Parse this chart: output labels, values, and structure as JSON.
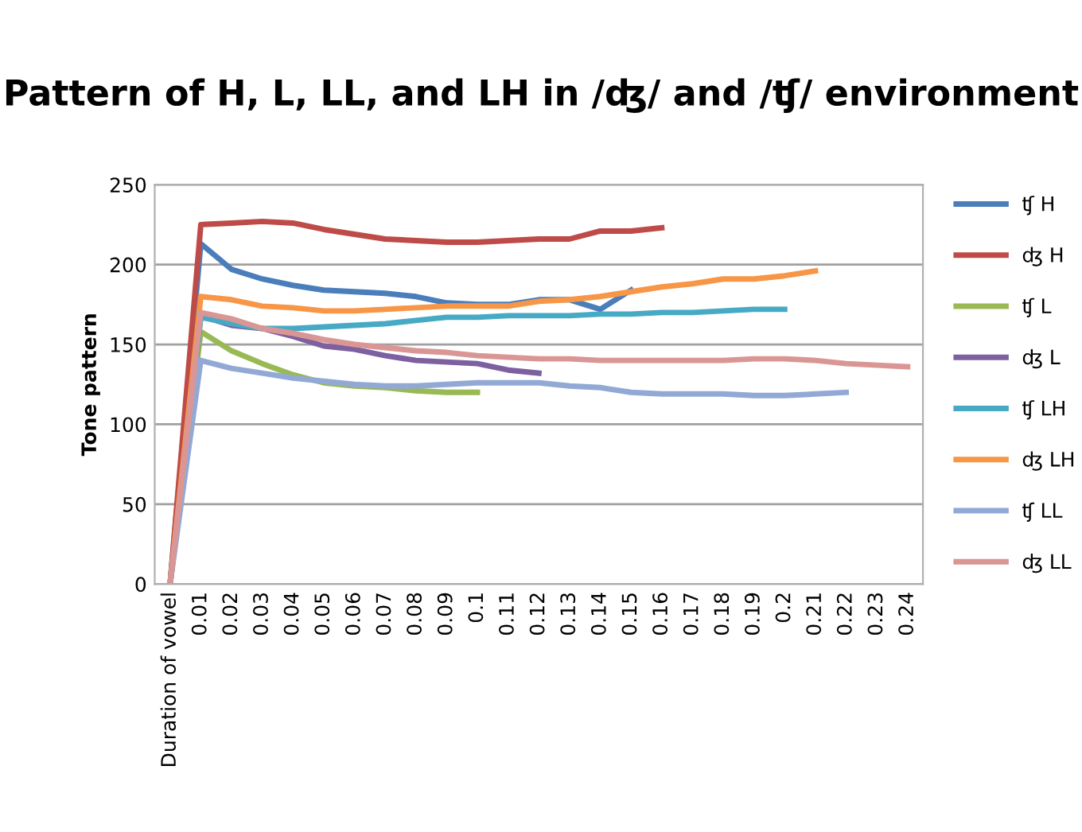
{
  "chart_data": {
    "type": "line",
    "title": "Pattern of H, L, LL, and LH in /ʤ/ and /ʧ/ environment",
    "ylabel": "Tone pattern",
    "categories": [
      "Duration of vowel",
      "0.01",
      "0.02",
      "0.03",
      "0.04",
      "0.05",
      "0.06",
      "0.07",
      "0.08",
      "0.09",
      "0.1",
      "0.11",
      "0.12",
      "0.13",
      "0.14",
      "0.15",
      "0.16",
      "0.17",
      "0.18",
      "0.19",
      "0.2",
      "0.21",
      "0.22",
      "0.23",
      "0.24"
    ],
    "ylim": [
      0,
      250
    ],
    "yticks": [
      0,
      50,
      100,
      150,
      200,
      250
    ],
    "grid": "y",
    "legend": "right",
    "marker": "none",
    "line_style": "solid",
    "series": [
      {
        "name": "ʧ H",
        "color": "#4a7ebb",
        "values": [
          0,
          213,
          197,
          191,
          187,
          184,
          183,
          182,
          180,
          176,
          175,
          175,
          178,
          178,
          172,
          184,
          null,
          null,
          null,
          null,
          null,
          null,
          null,
          null,
          null
        ]
      },
      {
        "name": "ʤ H",
        "color": "#be4b48",
        "values": [
          0,
          225,
          226,
          227,
          226,
          222,
          219,
          216,
          215,
          214,
          214,
          215,
          216,
          216,
          221,
          221,
          223,
          null,
          null,
          null,
          null,
          null,
          null,
          null,
          null
        ]
      },
      {
        "name": "ʧ L",
        "color": "#98b954",
        "values": [
          0,
          158,
          146,
          138,
          131,
          126,
          124,
          123,
          121,
          120,
          120,
          null,
          null,
          null,
          null,
          null,
          null,
          null,
          null,
          null,
          null,
          null,
          null,
          null,
          null
        ]
      },
      {
        "name": "ʤ L",
        "color": "#7d60a0",
        "values": [
          0,
          168,
          162,
          160,
          155,
          149,
          147,
          143,
          140,
          139,
          138,
          134,
          132,
          null,
          null,
          null,
          null,
          null,
          null,
          null,
          null,
          null,
          null,
          null,
          null
        ]
      },
      {
        "name": "ʧ LH",
        "color": "#46aac5",
        "values": [
          0,
          167,
          163,
          160,
          160,
          161,
          162,
          163,
          165,
          167,
          167,
          168,
          168,
          168,
          169,
          169,
          170,
          170,
          171,
          172,
          172,
          null,
          null,
          null,
          null
        ]
      },
      {
        "name": "ʤ LH",
        "color": "#f79646",
        "values": [
          0,
          180,
          178,
          174,
          173,
          171,
          171,
          172,
          173,
          174,
          174,
          174,
          177,
          178,
          180,
          183,
          186,
          188,
          191,
          191,
          193,
          196,
          null,
          null,
          null
        ]
      },
      {
        "name": "ʧ LL",
        "color": "#92a9d6",
        "values": [
          0,
          140,
          135,
          132,
          129,
          127,
          125,
          124,
          124,
          125,
          126,
          126,
          126,
          124,
          123,
          120,
          119,
          119,
          119,
          118,
          118,
          119,
          120,
          null,
          null
        ]
      },
      {
        "name": "ʤ LL",
        "color": "#d99694",
        "values": [
          0,
          170,
          166,
          160,
          157,
          153,
          150,
          148,
          146,
          145,
          143,
          142,
          141,
          141,
          140,
          140,
          140,
          140,
          140,
          141,
          141,
          140,
          138,
          137,
          136
        ]
      }
    ]
  }
}
